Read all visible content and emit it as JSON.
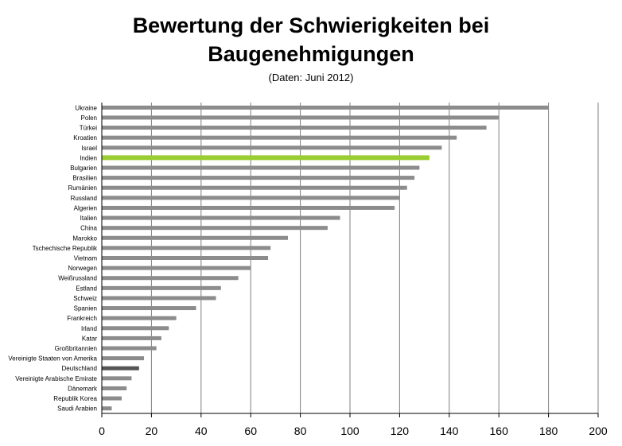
{
  "chart_data": {
    "type": "bar",
    "orientation": "horizontal",
    "title_line1": "Bewertung der Schwierigkeiten bei",
    "title_line2": "Baugenehmigungen",
    "subtitle": "(Daten: Juni 2012)",
    "categories": [
      "Ukraine",
      "Polen",
      "Türkei",
      "Kroatien",
      "Israel",
      "Indien",
      "Bulgarien",
      "Brasilien",
      "Rumänien",
      "Russland",
      "Algerien",
      "Italien",
      "China",
      "Marokko",
      "Tschechische Republik",
      "Vietnam",
      "Norwegen",
      "Weißrussland",
      "Estland",
      "Schweiz",
      "Spanien",
      "Frankreich",
      "Irland",
      "Katar",
      "Großbritannien",
      "Vereinigte Staaten von Amerika",
      "Deutschland",
      "Vereinigte Arabische Emirate",
      "Dänemark",
      "Republik Korea",
      "Saudi Arabien"
    ],
    "values": [
      180,
      160,
      155,
      143,
      137,
      132,
      128,
      126,
      123,
      120,
      118,
      96,
      91,
      75,
      68,
      67,
      60,
      55,
      48,
      46,
      38,
      30,
      27,
      24,
      22,
      17,
      15,
      12,
      10,
      8,
      4
    ],
    "xlim": [
      0,
      200
    ],
    "xticks": [
      0,
      20,
      40,
      60,
      80,
      100,
      120,
      140,
      160,
      180,
      200
    ],
    "grid": true,
    "colors": {
      "default": "#8c8c8c",
      "indien": "#9acd32",
      "deutschland": "#555555",
      "grid": "#7f7f7f"
    }
  }
}
